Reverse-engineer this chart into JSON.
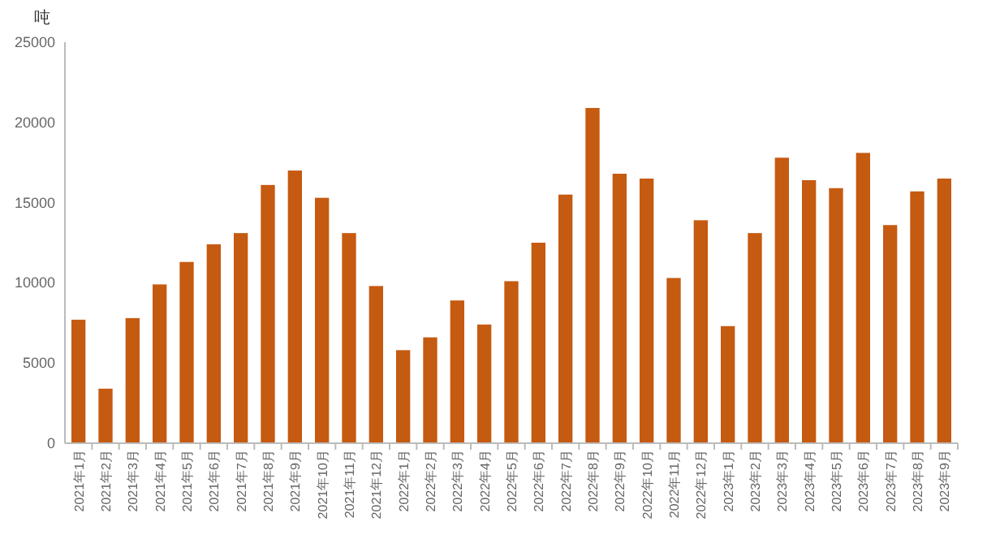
{
  "chart_data": {
    "type": "bar",
    "ylabel": "吨",
    "categories": [
      "2021年1月",
      "2021年2月",
      "2021年3月",
      "2021年4月",
      "2021年5月",
      "2021年6月",
      "2021年7月",
      "2021年8月",
      "2021年9月",
      "2021年10月",
      "2021年11月",
      "2021年12月",
      "2022年1月",
      "2022年2月",
      "2022年3月",
      "2022年4月",
      "2022年5月",
      "2022年6月",
      "2022年7月",
      "2022年8月",
      "2022年9月",
      "2022年10月",
      "2022年11月",
      "2022年12月",
      "2023年1月",
      "2023年2月",
      "2023年3月",
      "2023年4月",
      "2023年5月",
      "2023年6月",
      "2023年7月",
      "2023年8月",
      "2023年9月"
    ],
    "values": [
      7700,
      3400,
      7800,
      9900,
      11300,
      12400,
      13100,
      16100,
      17000,
      15300,
      13100,
      9800,
      5800,
      6600,
      8900,
      7400,
      10100,
      12500,
      15500,
      20900,
      16800,
      16500,
      10300,
      13900,
      7300,
      13100,
      17800,
      16400,
      15900,
      18100,
      13600,
      15700,
      16500
    ],
    "color": "#c55a11",
    "ylim": [
      0,
      25000
    ],
    "yticks": [
      0,
      5000,
      10000,
      15000,
      20000,
      25000
    ],
    "grid": false
  }
}
